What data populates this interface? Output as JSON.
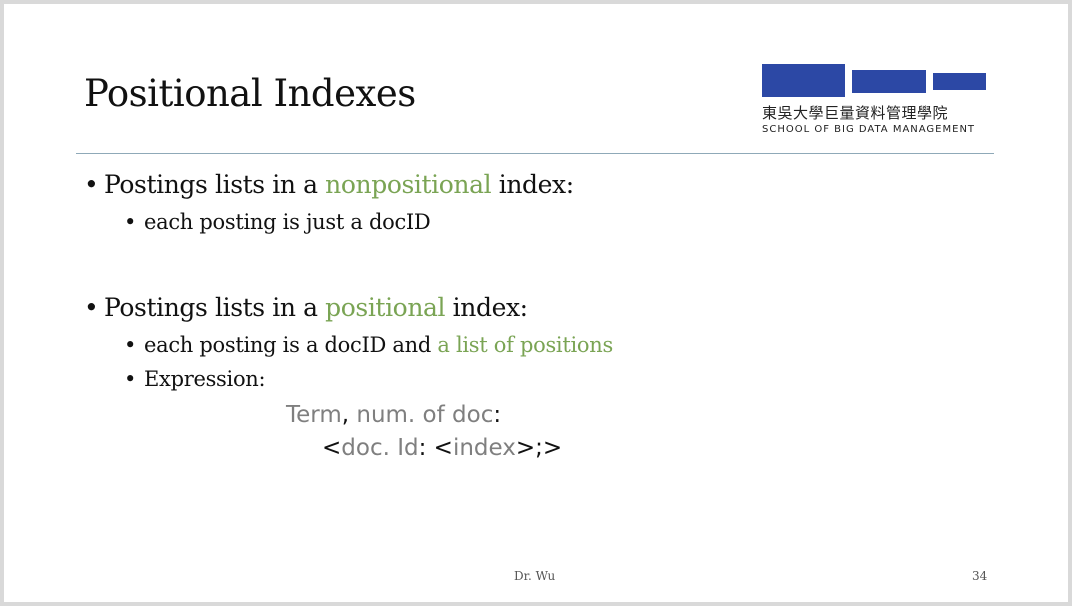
{
  "slide": {
    "title": "Positional Indexes",
    "logo": {
      "chinese_name": "東吳大學巨量資料管理學院",
      "english_name": "SCHOOL OF BIG DATA MANAGEMENT",
      "bar_color": "#2c48a5"
    },
    "bullets": [
      {
        "prefix": "Postings lists in a ",
        "highlight": "nonpositional",
        "suffix": " index:",
        "sub": [
          {
            "text": "each posting is just a docID"
          }
        ]
      },
      {
        "prefix": "Postings lists in a ",
        "highlight": "positional",
        "suffix": " index:",
        "sub": [
          {
            "prefix": "each posting is a docID and ",
            "highlight": "a list of positions"
          },
          {
            "text": "Expression:"
          }
        ]
      }
    ],
    "expression": {
      "line1": {
        "term": "Term",
        "comma": ",",
        "num": " num. of doc",
        "colon": ":"
      },
      "line2": {
        "lt1": "<",
        "docid": "doc. Id",
        "colon": ": ",
        "lt2": "<",
        "index": "index",
        "tail": ">;>"
      }
    },
    "footer": {
      "author": "Dr. Wu",
      "page": "34"
    },
    "accent_color": "#7aa454",
    "gray_color": "#7f7f7f"
  }
}
